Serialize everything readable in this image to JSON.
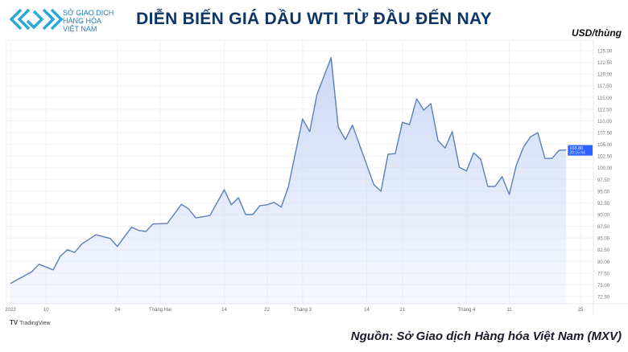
{
  "header": {
    "logo_text": [
      "SỞ GIAO DỊCH",
      "HÀNG HÓA",
      "VIỆT NAM"
    ],
    "title": "DIỄN BIẾN GIÁ DẦU WTI TỪ ĐẦU ĐẾN NAY",
    "unit": "USD/thùng"
  },
  "footer": {
    "tradingview": "TradingView",
    "source": "Nguồn: Sở Giao dịch Hàng hóa Việt Nam (MXV)"
  },
  "chart_data": {
    "type": "area",
    "ylim": [
      71,
      127
    ],
    "y_ticks": [
      "72.50",
      "75.00",
      "77.50",
      "80.00",
      "82.50",
      "85.00",
      "87.50",
      "90.00",
      "92.50",
      "95.00",
      "97.50",
      "100.00",
      "102.50",
      "105.00",
      "107.50",
      "110.00",
      "112.50",
      "115.00",
      "117.50",
      "120.00",
      "122.50",
      "125.00"
    ],
    "x_ticks": [
      {
        "date": "2022-01-03",
        "label": "2022"
      },
      {
        "date": "2022-01-10",
        "label": "10"
      },
      {
        "date": "2022-01-24",
        "label": "24"
      },
      {
        "date": "2022-02-01",
        "label": "Tháng Hai"
      },
      {
        "date": "2022-02-14",
        "label": "14"
      },
      {
        "date": "2022-02-22",
        "label": "22"
      },
      {
        "date": "2022-03-01",
        "label": "Tháng 3"
      },
      {
        "date": "2022-03-14",
        "label": "14"
      },
      {
        "date": "2022-03-21",
        "label": "21"
      },
      {
        "date": "2022-04-01",
        "label": "Tháng 4"
      },
      {
        "date": "2022-04-11",
        "label": "11"
      },
      {
        "date": "2022-04-25",
        "label": "25"
      }
    ],
    "last_price_label": "103.80",
    "last_price_time": "20:15:44",
    "grid": true,
    "colors": {
      "line": "#5b7fb8",
      "fill": "#c9d6f5",
      "label_bg": "#2962ff"
    },
    "x": [
      "2022-01-03",
      "2022-01-06",
      "2022-01-07",
      "2022-01-11",
      "2022-01-12",
      "2022-01-13",
      "2022-01-14",
      "2022-01-17",
      "2022-01-19",
      "2022-01-21",
      "2022-01-24",
      "2022-01-26",
      "2022-01-27",
      "2022-01-28",
      "2022-01-31",
      "2022-02-02",
      "2022-02-04",
      "2022-02-07",
      "2022-02-08",
      "2022-02-10",
      "2022-02-14",
      "2022-02-15",
      "2022-02-16",
      "2022-02-17",
      "2022-02-18",
      "2022-02-21",
      "2022-02-22",
      "2022-02-23",
      "2022-02-24",
      "2022-02-25",
      "2022-03-01",
      "2022-03-02",
      "2022-03-03",
      "2022-03-07",
      "2022-03-08",
      "2022-03-09",
      "2022-03-10",
      "2022-03-15",
      "2022-03-16",
      "2022-03-17",
      "2022-03-18",
      "2022-03-21",
      "2022-03-22",
      "2022-03-23",
      "2022-03-24",
      "2022-03-25",
      "2022-03-28",
      "2022-03-29",
      "2022-03-30",
      "2022-03-31",
      "2022-04-01",
      "2022-04-04",
      "2022-04-05",
      "2022-04-06",
      "2022-04-07",
      "2022-04-08",
      "2022-04-11",
      "2022-04-12",
      "2022-04-13",
      "2022-04-14",
      "2022-04-15",
      "2022-04-18",
      "2022-04-19",
      "2022-04-20",
      "2022-04-21"
    ],
    "values": [
      75.3,
      77.8,
      79.4,
      78.2,
      81.1,
      82.5,
      81.9,
      83.7,
      85.7,
      84.9,
      83.2,
      87.3,
      86.6,
      86.4,
      88.0,
      88.1,
      92.2,
      91.2,
      89.3,
      89.8,
      95.3,
      92.1,
      93.6,
      90.0,
      90.0,
      91.9,
      92.1,
      92.6,
      91.6,
      95.9,
      110.4,
      107.7,
      115.6,
      123.5,
      108.7,
      106.0,
      109.1,
      96.4,
      95.0,
      102.9,
      103.0,
      109.7,
      109.2,
      114.7,
      112.3,
      113.7,
      105.8,
      104.2,
      107.7,
      100.1,
      99.3,
      103.2,
      101.8,
      96.0,
      96.0,
      98.1,
      94.3,
      100.6,
      104.4,
      106.6,
      107.5,
      102.0,
      102.0,
      103.7,
      103.8
    ]
  }
}
